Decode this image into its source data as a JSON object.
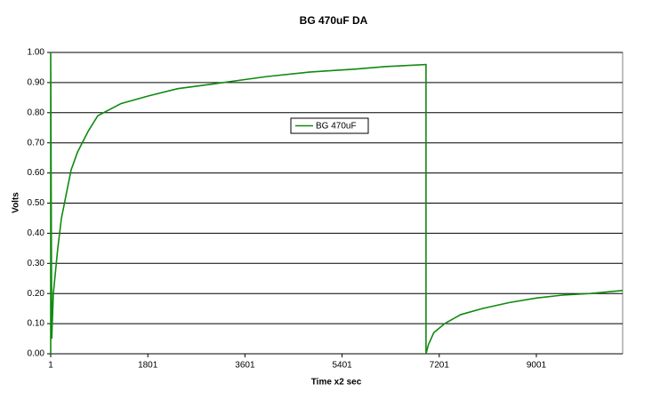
{
  "chart_data": {
    "type": "line",
    "title": "BG 470uF DA",
    "x_label": "Time x2 sec",
    "y_label": "Volts",
    "x": [
      1,
      1,
      20,
      50,
      132,
      200,
      379,
      500,
      700,
      874,
      1300,
      1800,
      2358,
      3000,
      3600,
      4006,
      4800,
      5400,
      5655,
      6200,
      6956,
      6956,
      7000,
      7100,
      7300,
      7600,
      8000,
      8500,
      9000,
      9500,
      10000,
      10600
    ],
    "series": [
      {
        "name": "BG 470uF",
        "color": "#0f8a0f",
        "values": [
          0,
          1.0,
          0.05,
          0.2,
          0.35,
          0.45,
          0.61,
          0.67,
          0.74,
          0.79,
          0.83,
          0.855,
          0.88,
          0.895,
          0.91,
          0.92,
          0.935,
          0.942,
          0.945,
          0.953,
          0.96,
          0.0,
          0.03,
          0.07,
          0.1,
          0.13,
          0.15,
          0.17,
          0.185,
          0.195,
          0.2,
          0.21
        ]
      }
    ],
    "xlim": [
      1,
      10600
    ],
    "xticks": [
      1,
      1801,
      3601,
      5401,
      7201,
      9001
    ],
    "ylim": [
      0,
      1
    ],
    "yticks": [
      {
        "value": 0,
        "label": "0.00"
      },
      {
        "value": 0.1,
        "label": "0.10"
      },
      {
        "value": 0.2,
        "label": "0.20"
      },
      {
        "value": 0.3,
        "label": "0.30"
      },
      {
        "value": 0.4,
        "label": "0.40"
      },
      {
        "value": 0.5,
        "label": "0.50"
      },
      {
        "value": 0.6,
        "label": "0.60"
      },
      {
        "value": 0.7,
        "label": "0.70"
      },
      {
        "value": 0.8,
        "label": "0.80"
      },
      {
        "value": 0.9,
        "label": "0.90"
      },
      {
        "value": 1.0,
        "label": "1.00"
      }
    ],
    "grid": true,
    "legend": "center"
  }
}
